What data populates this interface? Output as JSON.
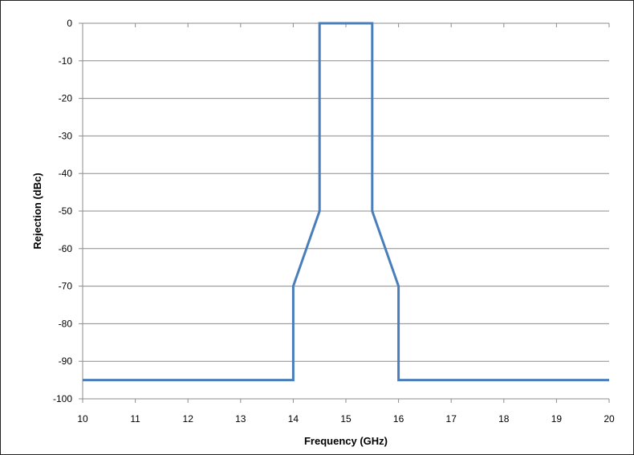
{
  "chart_data": {
    "type": "line",
    "title": "",
    "xlabel": "Frequency (GHz)",
    "ylabel": "Rejection (dBc)",
    "xlim": [
      10,
      20
    ],
    "ylim": [
      -100,
      0
    ],
    "x_ticks": [
      "10",
      "11",
      "12",
      "13",
      "14",
      "15",
      "16",
      "17",
      "18",
      "19",
      "20"
    ],
    "y_ticks": [
      "0",
      "-10",
      "-20",
      "-30",
      "-40",
      "-50",
      "-60",
      "-70",
      "-80",
      "-90",
      "-100"
    ],
    "grid": "horizontal",
    "legend": "none",
    "series": [
      {
        "color": "#4a7ebb",
        "points": [
          [
            10,
            -95
          ],
          [
            14,
            -95
          ],
          [
            14,
            -70
          ],
          [
            14.5,
            -50
          ],
          [
            14.5,
            0
          ],
          [
            15.5,
            0
          ],
          [
            15.5,
            -50
          ],
          [
            16,
            -70
          ],
          [
            16,
            -95
          ],
          [
            20,
            -95
          ]
        ]
      }
    ]
  }
}
